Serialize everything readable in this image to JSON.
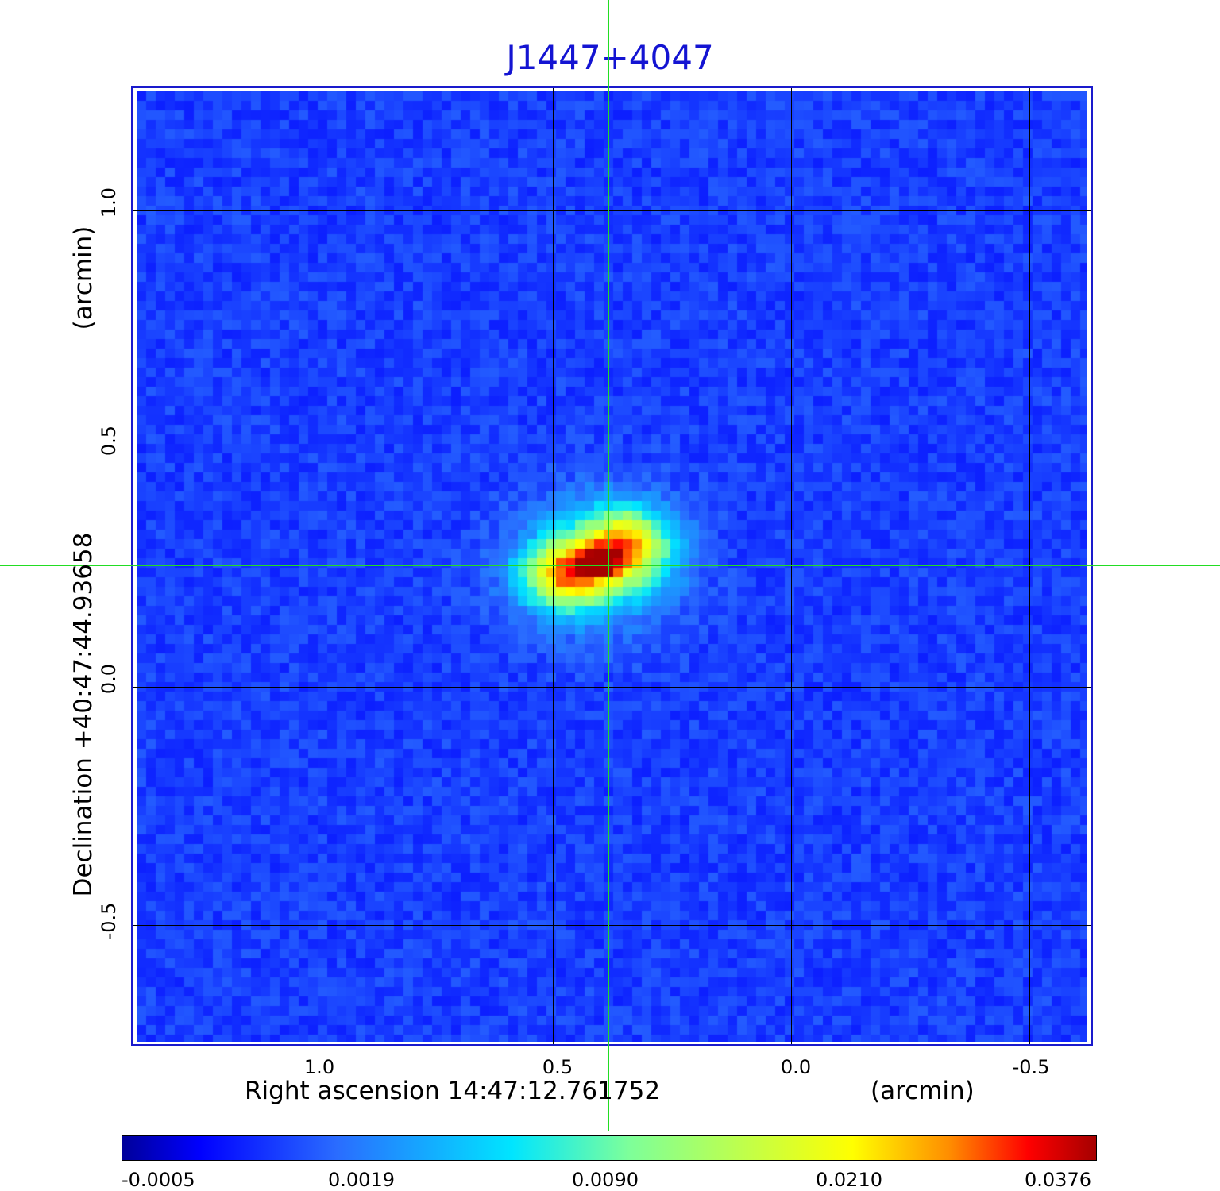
{
  "title": "J1447+4047",
  "x_axis": {
    "label": "Right ascension  14:47:12.761752",
    "unit": "(arcmin)",
    "ticks": [
      "1.0",
      "0.5",
      "0.0",
      "-0.5"
    ]
  },
  "y_axis": {
    "label": "Declination  +40:47:44.93658",
    "unit": "(arcmin)",
    "ticks": [
      "1.0",
      "0.5",
      "0.0",
      "-0.5"
    ]
  },
  "colorbar": {
    "ticks": [
      "-0.0005",
      "0.0019",
      "0.0090",
      "0.0210",
      "0.0376"
    ],
    "colors": [
      "#00009a",
      "#0000ff",
      "#2a6cff",
      "#00e5ff",
      "#7dff9a",
      "#ffff00",
      "#ff8c00",
      "#ff0000",
      "#a50000"
    ]
  },
  "colors": {
    "background_map": "#1450f0",
    "grid": "#000000",
    "crosshair": "#22dd22",
    "title": "#1414d2",
    "frame": "#1a1acc"
  }
}
